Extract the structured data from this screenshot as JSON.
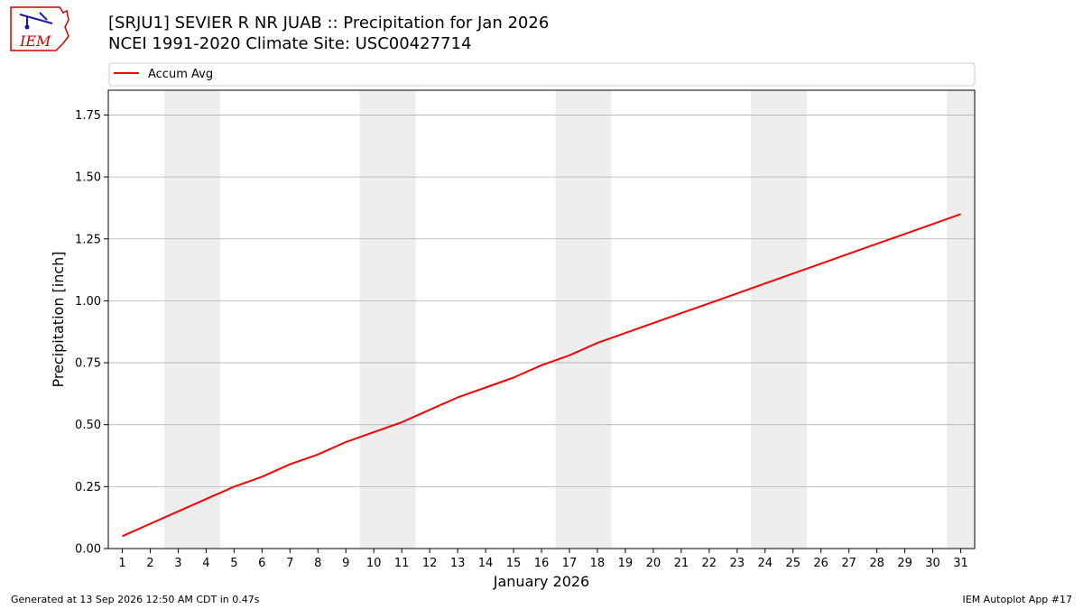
{
  "header": {
    "logo_text": "IEM",
    "title_line1": "[SRJU1] SEVIER R NR JUAB :: Precipitation for Jan 2026",
    "title_line2": "NCEI 1991-2020 Climate Site: USC00427714"
  },
  "footer": {
    "generated": "Generated at 13 Sep 2026 12:50 AM CDT in 0.47s",
    "app": "IEM Autoplot App #17"
  },
  "colors": {
    "series": "#ff0000",
    "weekend_shade": "#eeeeee",
    "grid": "#b0b0b0",
    "logo_red": "#cc0000",
    "logo_blue": "#1a1aa6"
  },
  "chart_data": {
    "type": "line",
    "xlabel": "January 2026",
    "ylabel": "Precipitation [inch]",
    "xlim": [
      0.5,
      31.5
    ],
    "ylim": [
      0,
      1.85
    ],
    "x_ticks": [
      1,
      2,
      3,
      4,
      5,
      6,
      7,
      8,
      9,
      10,
      11,
      12,
      13,
      14,
      15,
      16,
      17,
      18,
      19,
      20,
      21,
      22,
      23,
      24,
      25,
      26,
      27,
      28,
      29,
      30,
      31
    ],
    "y_ticks": [
      0,
      0.25,
      0.5,
      0.75,
      1.0,
      1.25,
      1.5,
      1.75
    ],
    "y_tick_labels": [
      "0.00",
      "0.25",
      "0.50",
      "0.75",
      "1.00",
      "1.25",
      "1.50",
      "1.75"
    ],
    "grid": "y",
    "legend_position": "top",
    "shaded_day_ranges": [
      [
        3,
        4
      ],
      [
        10,
        11
      ],
      [
        17,
        18
      ],
      [
        24,
        25
      ],
      [
        31,
        31
      ]
    ],
    "series": [
      {
        "name": "Accum Avg",
        "x": [
          1,
          2,
          3,
          4,
          5,
          6,
          7,
          8,
          9,
          10,
          11,
          12,
          13,
          14,
          15,
          16,
          17,
          18,
          19,
          20,
          21,
          22,
          23,
          24,
          25,
          26,
          27,
          28,
          29,
          30,
          31
        ],
        "values": [
          0.05,
          0.1,
          0.15,
          0.2,
          0.25,
          0.29,
          0.34,
          0.38,
          0.43,
          0.47,
          0.51,
          0.56,
          0.61,
          0.65,
          0.69,
          0.74,
          0.78,
          0.83,
          0.87,
          0.91,
          0.95,
          0.99,
          1.03,
          1.07,
          1.11,
          1.15,
          1.19,
          1.23,
          1.27,
          1.31,
          1.35
        ]
      }
    ]
  }
}
